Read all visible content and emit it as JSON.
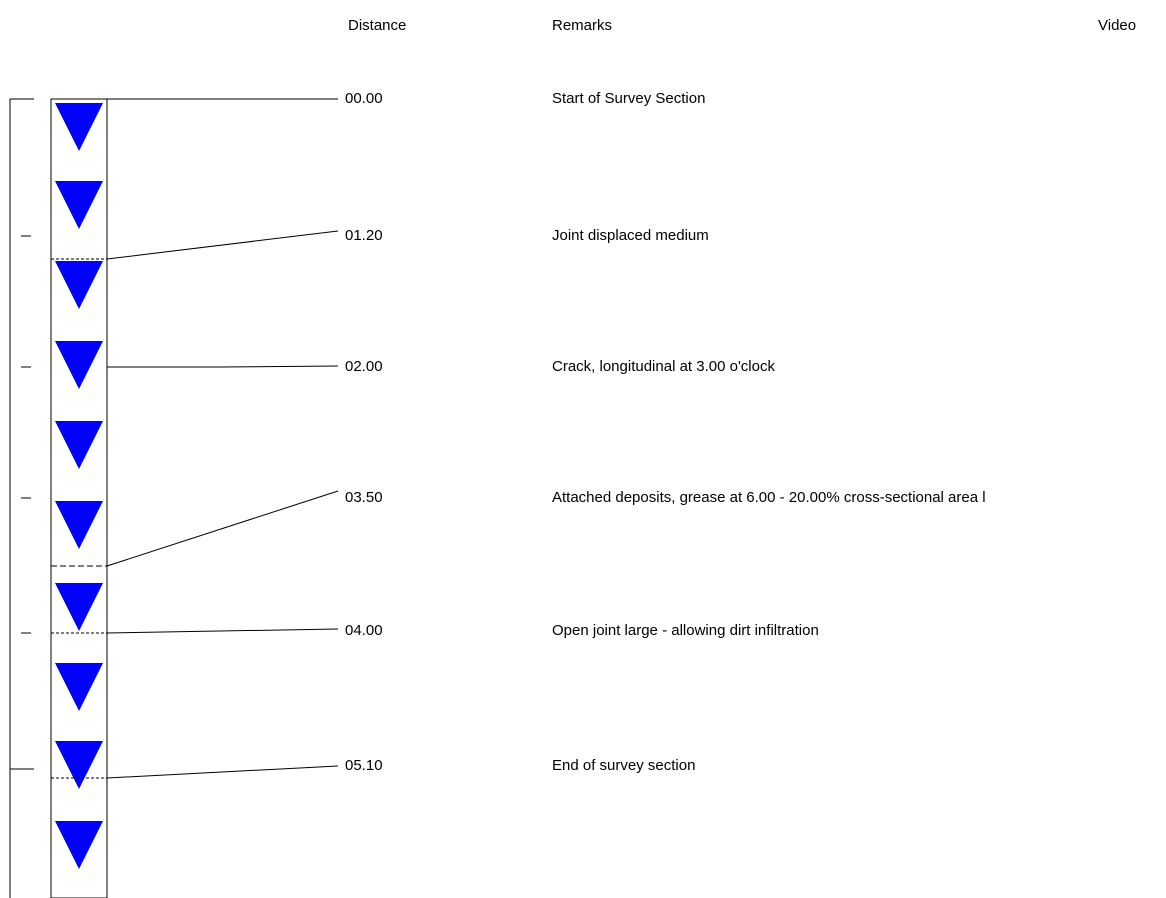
{
  "headers": {
    "distance": "Distance",
    "remarks": "Remarks",
    "video": "Video"
  },
  "colors": {
    "marker_fill": "#0000ff",
    "line": "#000000",
    "background": "#ffffff"
  },
  "marker_icon": "downward-triangle",
  "observations": [
    {
      "distance": "00.00",
      "remark": "Start of Survey Section"
    },
    {
      "distance": "01.20",
      "remark": "Joint displaced medium"
    },
    {
      "distance": "02.00",
      "remark": "Crack, longitudinal at 3.00 o'clock"
    },
    {
      "distance": "03.50",
      "remark": "Attached deposits, grease at 6.00 - 20.00% cross-sectional area l"
    },
    {
      "distance": "04.00",
      "remark": "Open joint large - allowing dirt infiltration"
    },
    {
      "distance": "05.10",
      "remark": "End of survey section"
    }
  ]
}
